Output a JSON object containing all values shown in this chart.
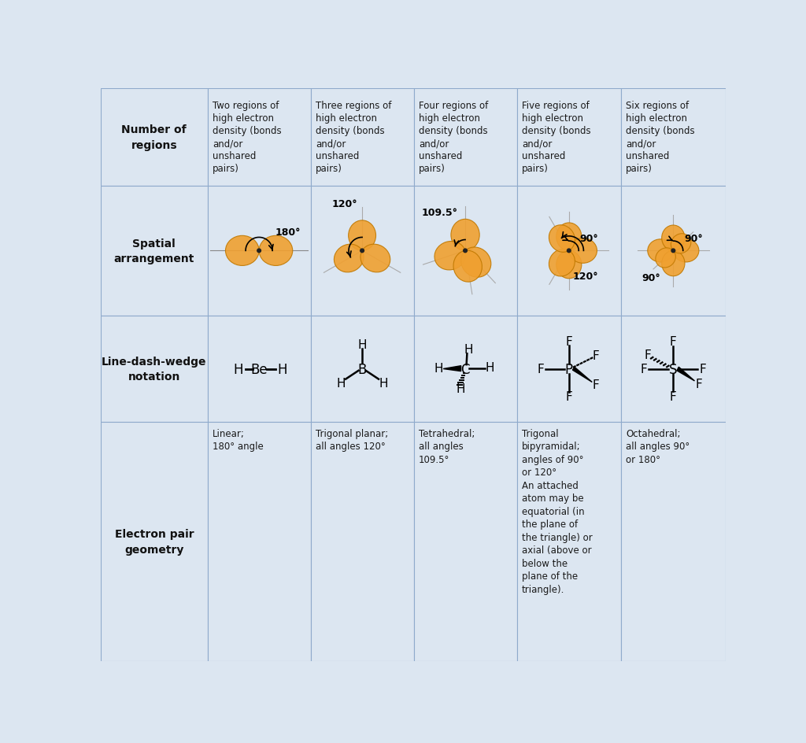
{
  "bg_color": "#dce6f1",
  "border_color": "#8faacc",
  "text_color": "#1a1a1a",
  "orbital_color": "#f0a030",
  "orbital_edge": "#c07800",
  "col_labels": [
    "Two regions of\nhigh electron\ndensity (bonds\nand/or\nunshared\npairs)",
    "Three regions of\nhigh electron\ndensity (bonds\nand/or\nunshared\npairs)",
    "Four regions of\nhigh electron\ndensity (bonds\nand/or\nunshared\npairs)",
    "Five regions of\nhigh electron\ndensity (bonds\nand/or\nunshared\npairs)",
    "Six regions of\nhigh electron\ndensity (bonds\nand/or\nunshared\npairs)"
  ],
  "geometry_texts": [
    "Linear;\n180° angle",
    "Trigonal planar;\nall angles 120°",
    "Tetrahedral;\nall angles\n109.5°",
    "Trigonal\nbipyramidal;\nangles of 90°\nor 120°\nAn attached\natom may be\nequatorial (in\nthe plane of\nthe triangle) or\naxial (above or\nbelow the\nplane of the\ntriangle).",
    "Octahedral;\nall angles 90°\nor 180°"
  ]
}
